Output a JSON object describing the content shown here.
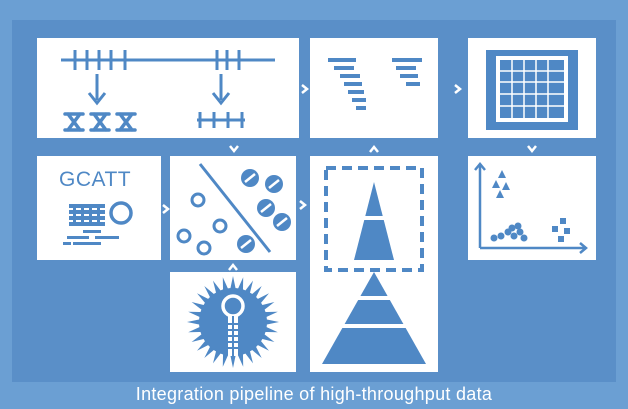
{
  "diagram": {
    "caption": "Integration pipeline of high-throughput data",
    "sequence_label": "GCATT",
    "colors": {
      "background": "#6b9fd3",
      "frame": "#5a8fc8",
      "panel": "#ffffff",
      "accent": "#4f88c5"
    },
    "icons": [
      "restriction-digest-icon",
      "sequence-alignment-icon",
      "data-matrix-icon",
      "sequencing-icon",
      "clustering-icon",
      "pyramid-icon",
      "scatter-plot-icon",
      "rna-hairpin-icon"
    ]
  }
}
